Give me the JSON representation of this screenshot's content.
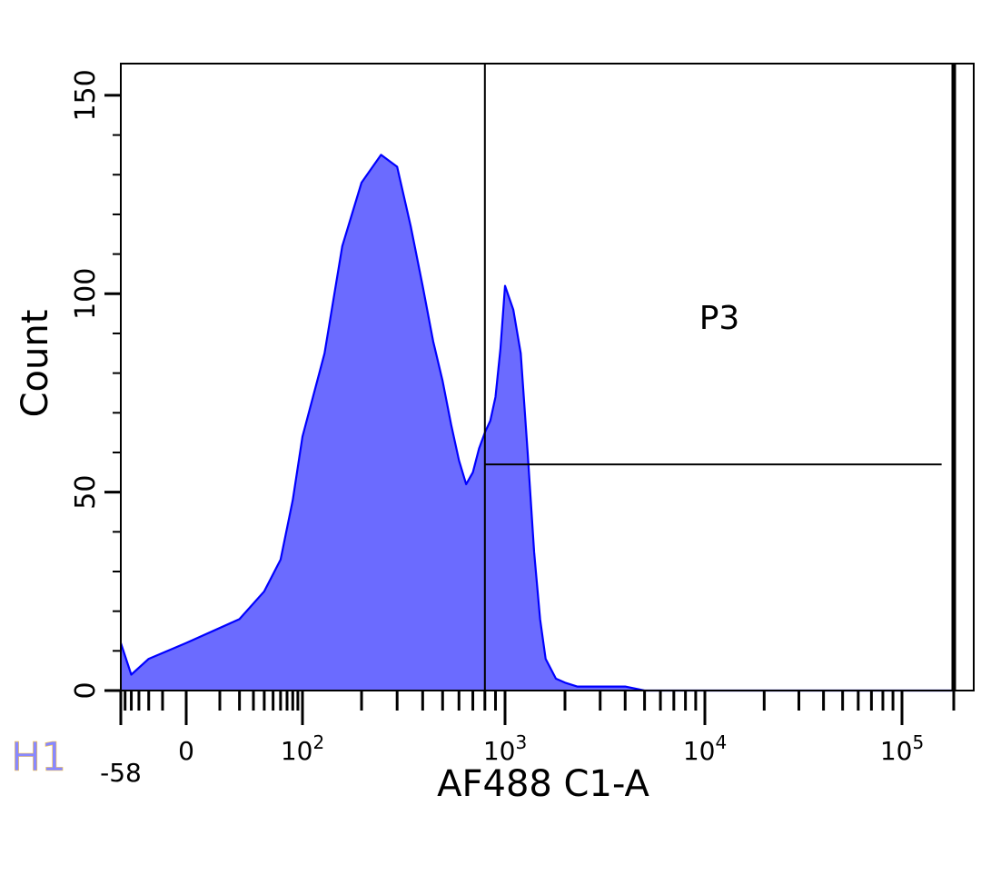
{
  "panel_label": "H1",
  "chart_data": {
    "type": "area",
    "title": "",
    "xlabel": "AF488 C1-A",
    "ylabel": "Count",
    "x_scale": "biexponential",
    "x_ticks": [
      {
        "label": "-58",
        "value": -58
      },
      {
        "label": "0",
        "value": 0
      },
      {
        "label": "10",
        "exp": "2",
        "value": 100
      },
      {
        "label": "10",
        "exp": "3",
        "value": 1000
      },
      {
        "label": "10",
        "exp": "4",
        "value": 10000
      },
      {
        "label": "10",
        "exp": "5",
        "value": 100000
      }
    ],
    "y_ticks": [
      0,
      50,
      100,
      150
    ],
    "ylim": [
      0,
      158
    ],
    "grid": false,
    "series": [
      {
        "color": "#0000ff",
        "fill": "#6b6bff",
        "x": [
          -58,
          -40,
          -20,
          0,
          20,
          40,
          60,
          80,
          100,
          130,
          160,
          200,
          250,
          300,
          350,
          400,
          450,
          500,
          550,
          600,
          650,
          700,
          750,
          800,
          850,
          900,
          950,
          1000,
          1100,
          1200,
          1300,
          1400,
          1500,
          1600,
          1800,
          2000,
          2300,
          2700,
          3200,
          4000,
          5000,
          6000,
          7000,
          8000,
          10000,
          12000,
          15000,
          20000,
          30000,
          50000,
          100000,
          200000
        ],
        "y": [
          12,
          4,
          8,
          12,
          18,
          25,
          33,
          48,
          64,
          85,
          112,
          128,
          135,
          132,
          117,
          102,
          88,
          78,
          67,
          58,
          52,
          55,
          61,
          65,
          68,
          74,
          86,
          102,
          96,
          85,
          60,
          35,
          18,
          8,
          3,
          2,
          1,
          1,
          1,
          1,
          0,
          0,
          0,
          0,
          0,
          0,
          0,
          0,
          0,
          0,
          0,
          0
        ]
      }
    ],
    "gates": [
      {
        "name": "P3",
        "x_range": [
          800,
          170000
        ],
        "y_level": 57
      }
    ]
  }
}
